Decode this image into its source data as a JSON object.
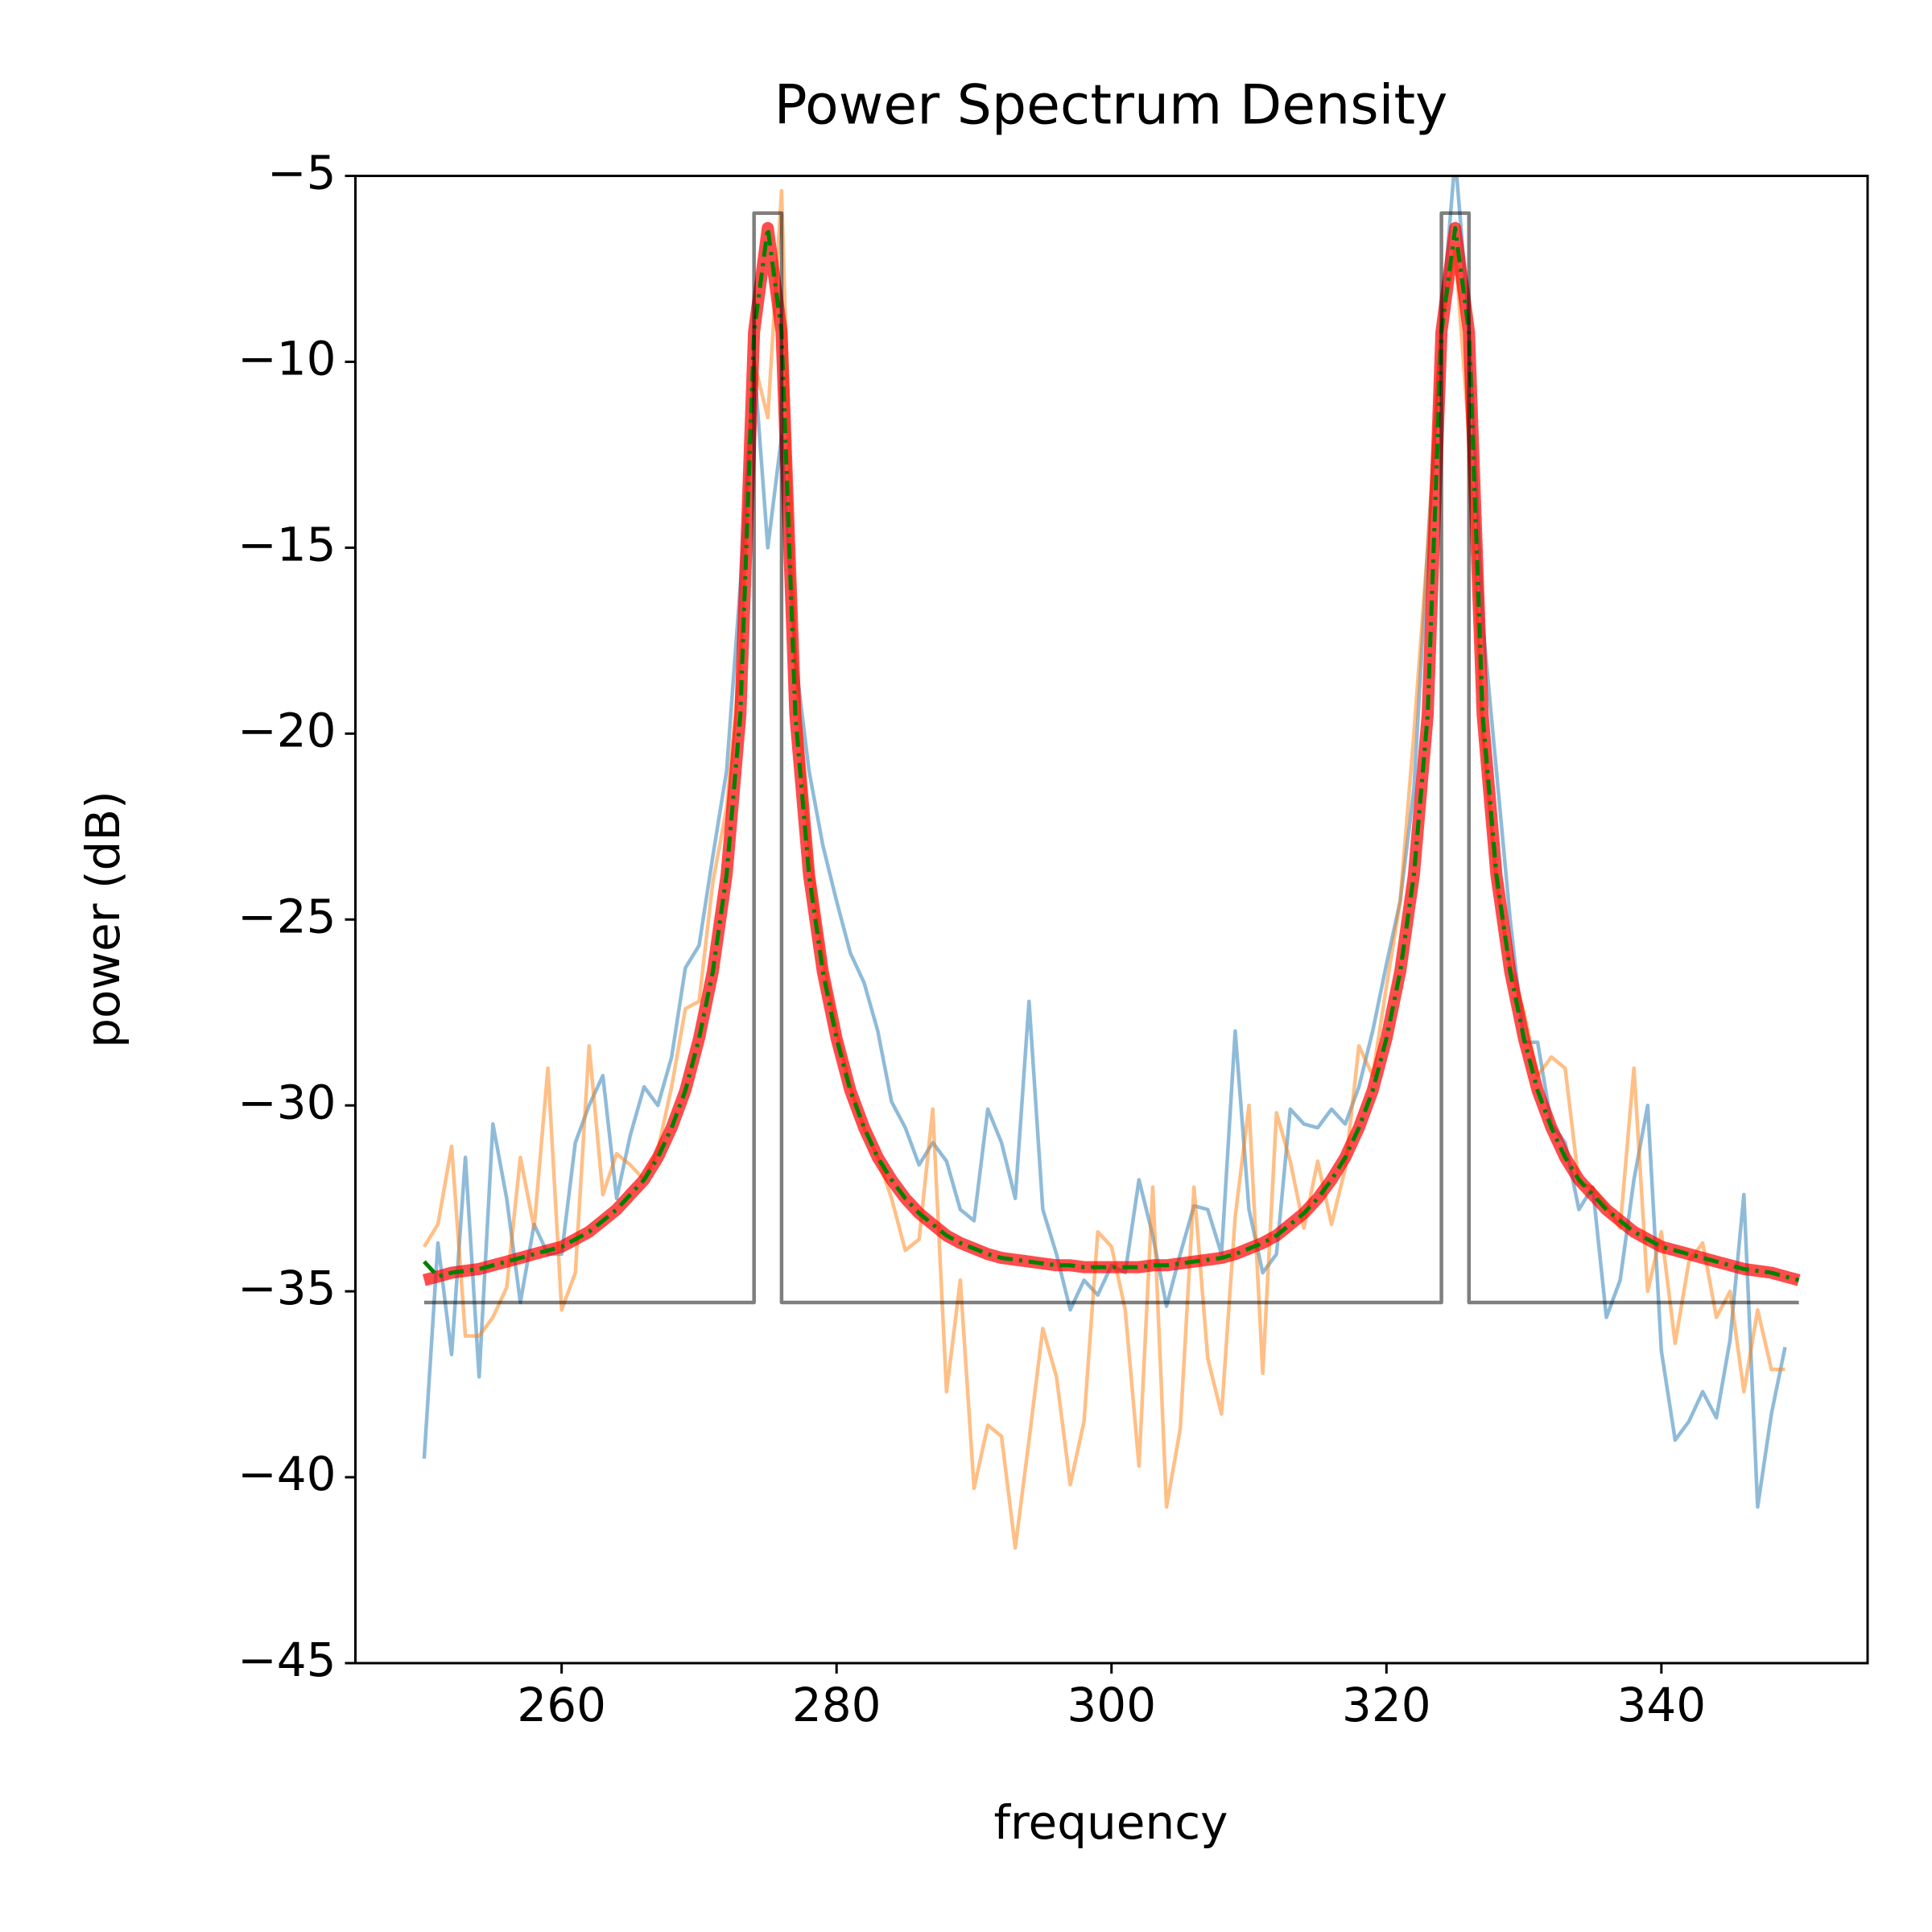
{
  "chart_data": {
    "type": "line",
    "title": "Power Spectrum Density",
    "x_label": "frequency",
    "y_label": "power (dB)",
    "xlim": [
      245,
      355
    ],
    "xticks": [
      260,
      280,
      300,
      320,
      340
    ],
    "ylim": [
      -45,
      -5
    ],
    "yticks": [
      {
        "value": -5,
        "label": "−5"
      },
      {
        "value": -10,
        "label": "−10"
      },
      {
        "value": -15,
        "label": "−15"
      },
      {
        "value": -20,
        "label": "−20"
      },
      {
        "value": -25,
        "label": "−25"
      },
      {
        "value": -30,
        "label": "−30"
      },
      {
        "value": -35,
        "label": "−35"
      },
      {
        "value": -40,
        "label": "−40"
      },
      {
        "value": -45,
        "label": "−45"
      }
    ],
    "grid": false,
    "x": [
      250,
      251,
      252,
      253,
      254,
      255,
      256,
      257,
      258,
      259,
      260,
      261,
      262,
      263,
      264,
      265,
      266,
      267,
      268,
      269,
      270,
      271,
      272,
      273,
      274,
      275,
      276,
      277,
      278,
      279,
      280,
      281,
      282,
      283,
      284,
      285,
      286,
      287,
      288,
      289,
      290,
      291,
      292,
      293,
      294,
      295,
      296,
      297,
      298,
      299,
      300,
      301,
      302,
      303,
      304,
      305,
      306,
      307,
      308,
      309,
      310,
      311,
      312,
      313,
      314,
      315,
      316,
      317,
      318,
      319,
      320,
      321,
      322,
      323,
      324,
      325,
      326,
      327,
      328,
      329,
      330,
      331,
      332,
      333,
      334,
      335,
      336,
      337,
      338,
      339,
      340,
      341,
      342,
      343,
      344,
      345,
      346,
      347,
      348,
      349,
      350
    ],
    "series": [
      {
        "color": "#1f77b4",
        "opacity": 0.5,
        "width": 4.5,
        "values": [
          -39.5,
          -33.7,
          -36.7,
          -31.4,
          -37.3,
          -30.5,
          -32.5,
          -35.3,
          -33.2,
          -34,
          -34,
          -31,
          -30,
          -29.2,
          -32.5,
          -30.8,
          -29.5,
          -30,
          -28.7,
          -26.3,
          -25.7,
          -23.3,
          -21,
          -16,
          -10,
          -15,
          -12,
          -18,
          -21,
          -23,
          -24.5,
          -25.9,
          -26.7,
          -28,
          -29.9,
          -30.6,
          -31.6,
          -31,
          -31.5,
          -32.8,
          -33.1,
          -30.1,
          -31,
          -32.5,
          -27.2,
          -32.8,
          -34,
          -35.5,
          -34.7,
          -35.1,
          -34.3,
          -34.5,
          -32,
          -33.5,
          -35.4,
          -34,
          -32.7,
          -32.8,
          -34,
          -28,
          -32.8,
          -34.5,
          -34,
          -30.1,
          -30.5,
          -30.6,
          -30.1,
          -30.5,
          -29.5,
          -28,
          -26.2,
          -24.5,
          -21.5,
          -15,
          -9,
          -4.5,
          -9,
          -17,
          -21,
          -25,
          -28.3,
          -28.3,
          -30.5,
          -31,
          -32.8,
          -32.2,
          -35.7,
          -34.7,
          -32,
          -30,
          -36.6,
          -39,
          -38.5,
          -37.7,
          -38.4,
          -36.3,
          -32.4,
          -40.8,
          -38.3,
          -36.5,
          null
        ]
      },
      {
        "color": "#ff7f0e",
        "opacity": 0.5,
        "width": 4.5,
        "values": [
          -33.8,
          -33.2,
          -31.1,
          -36.2,
          -36.2,
          -35.7,
          -34.9,
          -31.4,
          -33.3,
          -29,
          -35.5,
          -34.5,
          -28.4,
          -32.4,
          -31.3,
          -31.6,
          -32,
          -31.2,
          -29.5,
          -27.4,
          -27.2,
          -24,
          -22,
          -18,
          -10,
          -11.5,
          -5.4,
          -18,
          -23,
          -26,
          -28,
          -29.5,
          -30.6,
          -31.4,
          -32.5,
          -33.9,
          -33.6,
          -30.1,
          -37.7,
          -34.7,
          -40.3,
          -38.6,
          -38.9,
          -41.9,
          -39,
          -36,
          -37.3,
          -40.2,
          -38.5,
          -33.4,
          -33.8,
          -35.5,
          -39.7,
          -32.2,
          -40.8,
          -38.7,
          -32.2,
          -36.8,
          -38.3,
          -33,
          -30,
          -37.2,
          -30.2,
          -31.5,
          -33.3,
          -31.5,
          -33.2,
          -31.7,
          -28.4,
          -29.2,
          -26.8,
          -24.5,
          -20,
          -15,
          -9,
          -7,
          -12,
          -20,
          -24,
          -26.3,
          -27.5,
          -29.2,
          -28.7,
          -29,
          -32.1,
          -32.2,
          -32.7,
          -33.3,
          -29,
          -35,
          -33.4,
          -36.4,
          -34.2,
          -33.7,
          -35.7,
          -35,
          -37.7,
          -35.5,
          -37.1,
          -37.1,
          null
        ]
      },
      {
        "color": "#ff0000",
        "opacity": 0.7,
        "width": 15,
        "values": [
          -34.7,
          -34.6,
          -34.5,
          -34.45,
          -34.4,
          -34.3,
          -34.2,
          -34.1,
          -34.0,
          -33.9,
          -33.8,
          -33.6,
          -33.4,
          -33.1,
          -32.8,
          -32.4,
          -32.0,
          -31.4,
          -30.6,
          -29.6,
          -28.2,
          -26.4,
          -23.8,
          -19.5,
          -9.2,
          -6.4,
          -9.2,
          -19.5,
          -23.8,
          -26.4,
          -28.2,
          -29.6,
          -30.6,
          -31.4,
          -32.0,
          -32.5,
          -32.9,
          -33.2,
          -33.5,
          -33.7,
          -33.85,
          -34.0,
          -34.1,
          -34.15,
          -34.2,
          -34.25,
          -34.3,
          -34.3,
          -34.35,
          -34.35,
          -34.35,
          -34.35,
          -34.35,
          -34.3,
          -34.3,
          -34.25,
          -34.2,
          -34.15,
          -34.1,
          -34.0,
          -33.85,
          -33.7,
          -33.5,
          -33.2,
          -32.9,
          -32.5,
          -32.0,
          -31.4,
          -30.6,
          -29.6,
          -28.2,
          -26.4,
          -23.8,
          -19.5,
          -9.2,
          -6.4,
          -9.2,
          -19.5,
          -23.8,
          -26.4,
          -28.2,
          -29.6,
          -30.6,
          -31.4,
          -32.0,
          -32.4,
          -32.8,
          -33.1,
          -33.4,
          -33.6,
          -33.8,
          -33.9,
          -34.0,
          -34.1,
          -34.2,
          -34.3,
          -34.4,
          -34.45,
          -34.5,
          -34.6,
          -34.7
        ]
      },
      {
        "color": "#008000",
        "opacity": 1,
        "width": 5,
        "dash": "dashdot",
        "values": [
          -34.2,
          -34.6,
          -34.5,
          -34.45,
          -34.4,
          -34.3,
          -34.2,
          -34.1,
          -34.0,
          -33.9,
          -33.8,
          -33.6,
          -33.4,
          -33.1,
          -32.8,
          -32.4,
          -32.0,
          -31.4,
          -30.6,
          -29.6,
          -28.2,
          -26.4,
          -23.8,
          -19.5,
          -9.2,
          -6.4,
          -9.2,
          -19.5,
          -23.8,
          -26.4,
          -28.2,
          -29.6,
          -30.6,
          -31.4,
          -32.0,
          -32.5,
          -32.9,
          -33.2,
          -33.5,
          -33.7,
          -33.85,
          -34.0,
          -34.1,
          -34.15,
          -34.2,
          -34.25,
          -34.3,
          -34.3,
          -34.35,
          -34.35,
          -34.35,
          -34.35,
          -34.35,
          -34.3,
          -34.3,
          -34.25,
          -34.2,
          -34.15,
          -34.1,
          -34.0,
          -33.85,
          -33.7,
          -33.5,
          -33.2,
          -32.9,
          -32.5,
          -32.0,
          -31.4,
          -30.6,
          -29.6,
          -28.2,
          -26.4,
          -23.8,
          -19.5,
          -9.2,
          -6.4,
          -9.2,
          -19.5,
          -23.8,
          -26.4,
          -28.2,
          -29.6,
          -30.6,
          -31.4,
          -32.0,
          -32.4,
          -32.8,
          -33.1,
          -33.4,
          -33.6,
          -33.8,
          -33.9,
          -34.0,
          -34.1,
          -34.2,
          -34.3,
          -34.4,
          -34.45,
          -34.5,
          -34.6,
          -34.7
        ]
      },
      {
        "color": "#000000",
        "opacity": 0.5,
        "width": 4.5,
        "x": [
          250,
          274,
          274,
          276,
          276,
          324,
          324,
          326,
          326,
          350
        ],
        "values": [
          -35.3,
          -35.3,
          -6,
          -6,
          -35.3,
          -35.3,
          -6,
          -6,
          -35.3,
          -35.3
        ]
      }
    ]
  }
}
